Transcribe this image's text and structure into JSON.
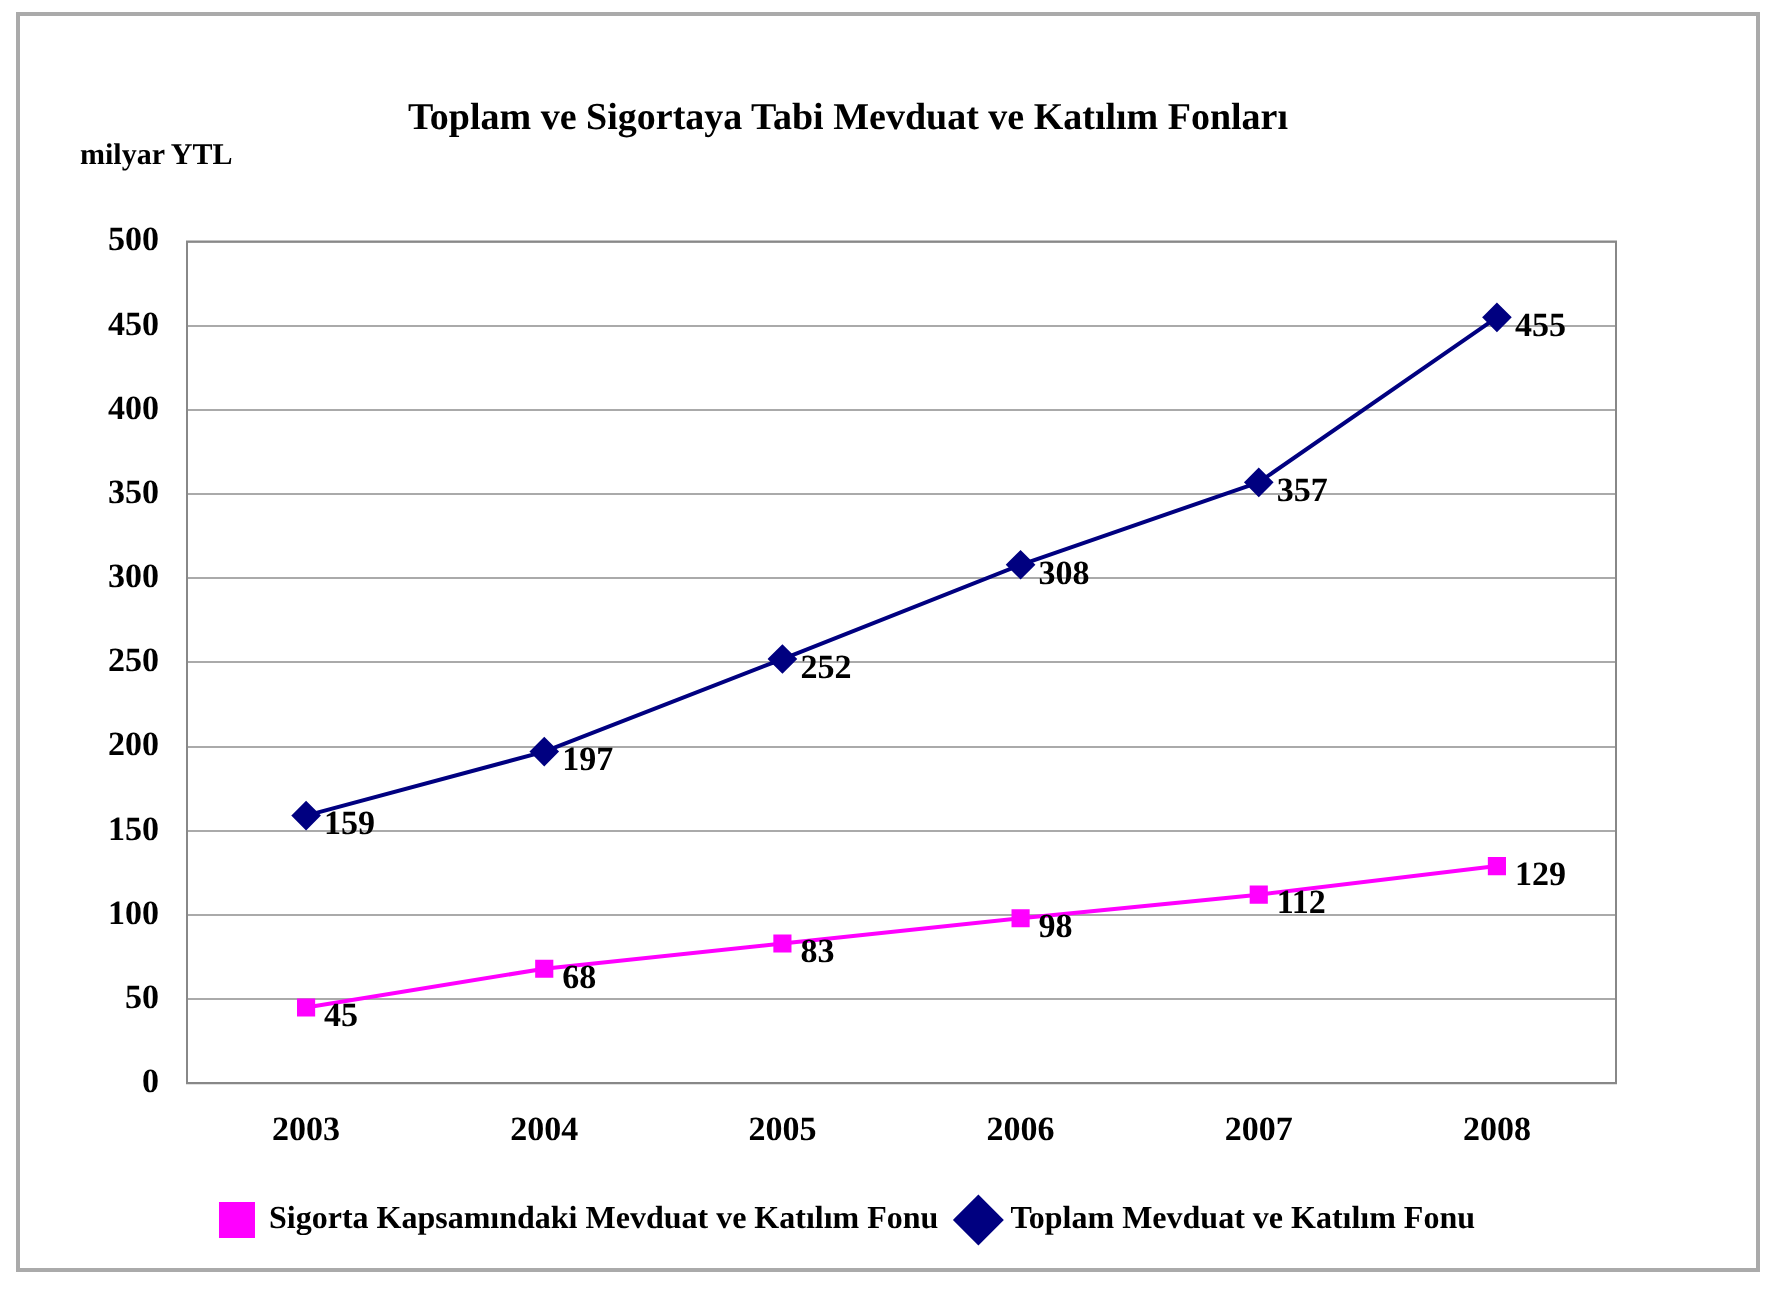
{
  "chart_data": {
    "type": "line",
    "title": "Toplam ve Sigortaya Tabi Mevduat ve Katılım Fonları",
    "ylabel": "milyar YTL",
    "categories": [
      "2003",
      "2004",
      "2005",
      "2006",
      "2007",
      "2008"
    ],
    "series": [
      {
        "name": "Sigorta Kapsamındaki Mevduat ve Katılım Fonu",
        "color": "#ff00ff",
        "marker": "square",
        "values": [
          45,
          68,
          83,
          98,
          112,
          129
        ]
      },
      {
        "name": "Toplam Mevduat ve Katılım Fonu",
        "color": "#000080",
        "marker": "diamond",
        "values": [
          159,
          197,
          252,
          308,
          357,
          455
        ]
      }
    ],
    "ylim": [
      0,
      500
    ],
    "yticks": [
      0,
      50,
      100,
      150,
      200,
      250,
      300,
      350,
      400,
      450,
      500
    ],
    "grid": "y",
    "legend": "bottom",
    "data_labels": true
  }
}
